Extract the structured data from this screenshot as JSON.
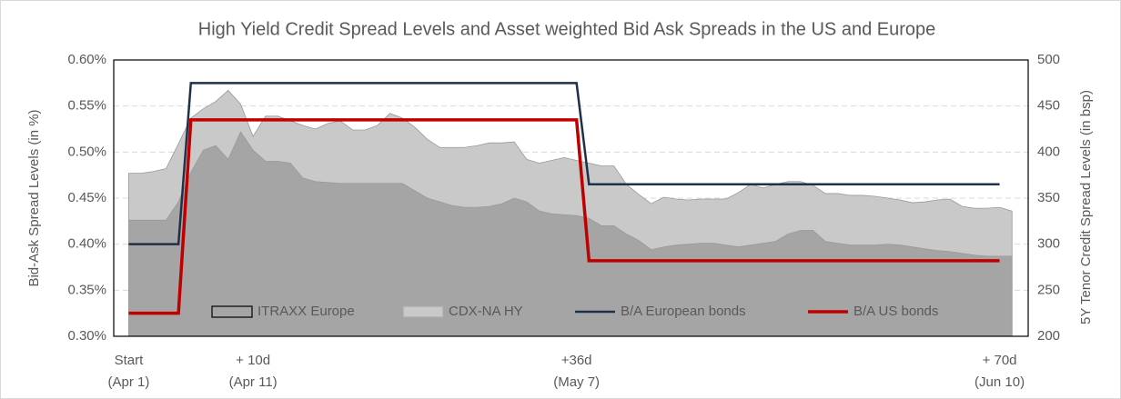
{
  "chart_data": {
    "type": "area",
    "title": "High Yield Credit Spread Levels and Asset weighted Bid Ask Spreads in the US and Europe",
    "y_label": "Bid-Ask Spread Levels (in %)",
    "y2_label": "5Y Tenor Credit Spread Levels (in bsp)",
    "xlim": [
      -1.2,
      72.3
    ],
    "xticks": [
      {
        "value": 0,
        "label": "Start\n(Apr 1)"
      },
      {
        "value": 10,
        "label": "+ 10d\n(Apr 11)"
      },
      {
        "value": 36,
        "label": "+36d\n(May 7)"
      },
      {
        "value": 70,
        "label": "+ 70d\n(Jun 10)"
      }
    ],
    "ylim": [
      0.3,
      0.6
    ],
    "yticks": [
      {
        "value": 0.3,
        "label": "0.30%"
      },
      {
        "value": 0.35,
        "label": "0.35%"
      },
      {
        "value": 0.4,
        "label": "0.40%"
      },
      {
        "value": 0.45,
        "label": "0.45%"
      },
      {
        "value": 0.5,
        "label": "0.50%"
      },
      {
        "value": 0.55,
        "label": "0.55%"
      },
      {
        "value": 0.6,
        "label": "0.60%"
      }
    ],
    "y2lim": [
      200,
      500
    ],
    "y2ticks": [
      200,
      250,
      300,
      350,
      400,
      450,
      500
    ],
    "grid": true,
    "legend": "bottom",
    "series": [
      {
        "name": "CDX-NA HY",
        "type": "area",
        "axis": "y2",
        "color": "#c9c9c9",
        "x": [
          0,
          1,
          2,
          3,
          4,
          5,
          6,
          7,
          8,
          9,
          10,
          11,
          12,
          13,
          14,
          15,
          16,
          17,
          18,
          19,
          20,
          21,
          22,
          23,
          24,
          25,
          26,
          27,
          28,
          29,
          30,
          31,
          32,
          33,
          34,
          35,
          36,
          37,
          38,
          39,
          40,
          41,
          42,
          43,
          44,
          45,
          46,
          47,
          48,
          49,
          50,
          51,
          52,
          53,
          54,
          55,
          56,
          57,
          58,
          59,
          60,
          61,
          62,
          63,
          64,
          65,
          66,
          67,
          68,
          69,
          70,
          71
        ],
        "values": [
          377,
          377,
          379,
          382,
          409,
          437,
          447,
          455,
          467,
          452,
          417,
          439,
          439,
          434,
          429,
          425,
          431,
          434,
          424,
          424,
          429,
          442,
          437,
          427,
          414,
          405,
          405,
          405,
          407,
          410,
          410,
          411,
          392,
          388,
          391,
          394,
          391,
          388,
          385,
          385,
          365,
          354,
          344,
          351,
          349,
          348,
          349,
          349,
          349,
          356,
          365,
          361,
          365,
          368,
          368,
          364,
          355,
          355,
          353,
          353,
          352,
          350,
          348,
          345,
          346,
          348,
          349,
          341,
          339,
          339,
          340,
          336
        ]
      },
      {
        "name": "ITRAXX Europe",
        "type": "area",
        "axis": "y2",
        "color": "#a5a5a5",
        "x": [
          0,
          1,
          2,
          3,
          4,
          5,
          6,
          7,
          8,
          9,
          10,
          11,
          12,
          13,
          14,
          15,
          16,
          17,
          18,
          19,
          20,
          21,
          22,
          23,
          24,
          25,
          26,
          27,
          28,
          29,
          30,
          31,
          32,
          33,
          34,
          35,
          36,
          37,
          38,
          39,
          40,
          41,
          42,
          43,
          44,
          45,
          46,
          47,
          48,
          49,
          50,
          51,
          52,
          53,
          54,
          55,
          56,
          57,
          58,
          59,
          60,
          61,
          62,
          63,
          64,
          65,
          66,
          67,
          68,
          69,
          70,
          71
        ],
        "values": [
          326,
          326,
          326,
          326,
          346,
          378,
          402,
          407,
          392,
          422,
          402,
          390,
          390,
          388,
          372,
          368,
          367,
          366,
          366,
          366,
          366,
          366,
          366,
          358,
          350,
          346,
          342,
          340,
          340,
          341,
          344,
          350,
          346,
          336,
          333,
          332,
          331,
          328,
          320,
          320,
          311,
          304,
          294,
          297,
          299,
          300,
          301,
          301,
          299,
          297,
          299,
          301,
          303,
          311,
          315,
          315,
          303,
          301,
          299,
          299,
          299,
          300,
          299,
          297,
          295,
          293,
          292,
          290,
          288,
          287,
          287,
          287
        ]
      },
      {
        "name": "B/A European bonds",
        "type": "line",
        "color": "#1f3049",
        "x": [
          0,
          4,
          5,
          36,
          37,
          70
        ],
        "values": [
          0.4,
          0.4,
          0.575,
          0.575,
          0.465,
          0.465
        ]
      },
      {
        "name": "B/A US bonds",
        "type": "line",
        "color": "#c00000",
        "x": [
          0,
          4,
          5,
          36,
          37,
          70
        ],
        "values": [
          0.325,
          0.325,
          0.535,
          0.535,
          0.382,
          0.382
        ]
      }
    ]
  }
}
